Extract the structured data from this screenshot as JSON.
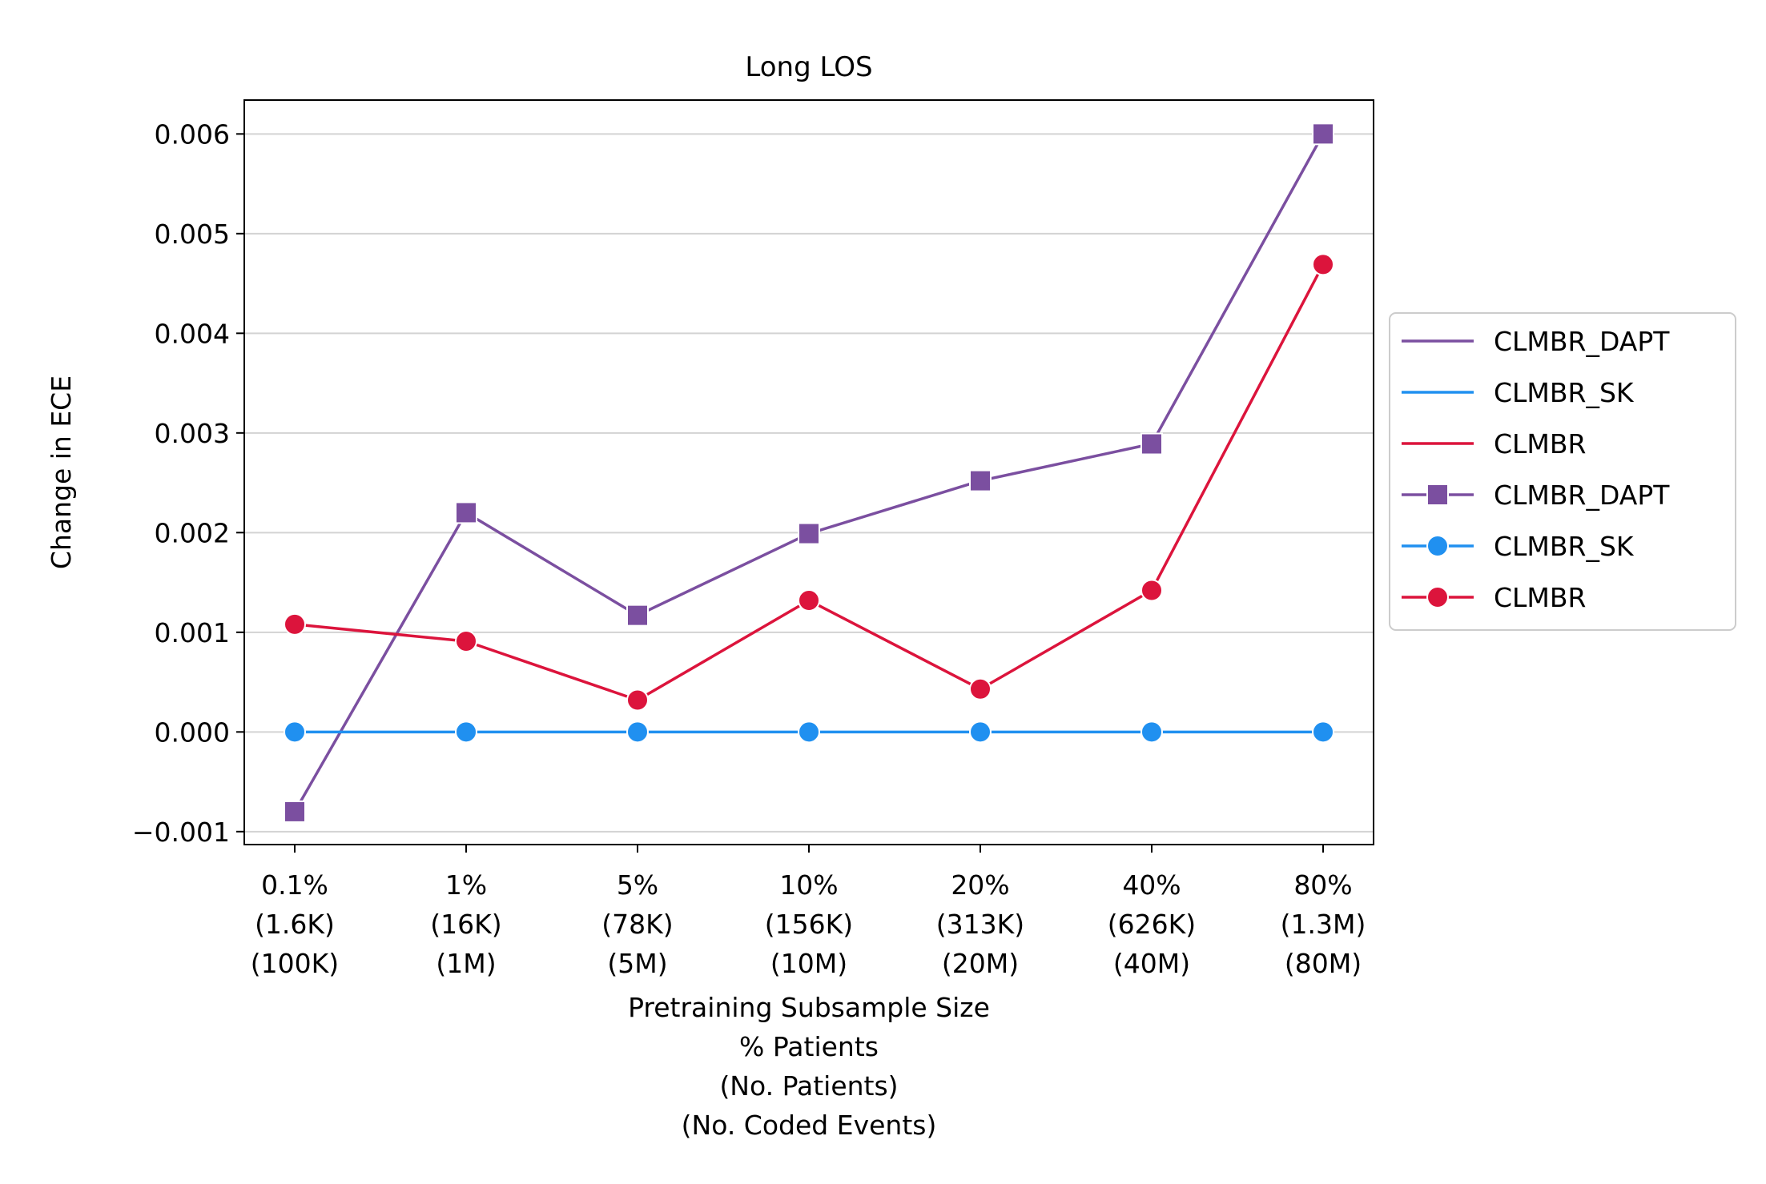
{
  "chart_data": {
    "type": "line",
    "title": "Long LOS",
    "xlabel_lines": [
      "Pretraining Subsample Size",
      "% Patients",
      "(No. Patients)",
      "(No. Coded Events)"
    ],
    "ylabel": "Change in ECE",
    "categories": [
      [
        "0.1%",
        "(1.6K)",
        "(100K)"
      ],
      [
        "1%",
        "(16K)",
        "(1M)"
      ],
      [
        "5%",
        "(78K)",
        "(5M)"
      ],
      [
        "10%",
        "(156K)",
        "(10M)"
      ],
      [
        "20%",
        "(313K)",
        "(20M)"
      ],
      [
        "40%",
        "(626K)",
        "(40M)"
      ],
      [
        "80%",
        "(1.3M)",
        "(80M)"
      ]
    ],
    "ylim": [
      -0.00113,
      0.00634
    ],
    "yticks": [
      -0.001,
      0.0,
      0.001,
      0.002,
      0.003,
      0.004,
      0.005,
      0.006
    ],
    "ytick_labels": [
      "−0.001",
      "0.000",
      "0.001",
      "0.002",
      "0.003",
      "0.004",
      "0.005",
      "0.006"
    ],
    "grid": "horizontal",
    "legend_position": "outside-right",
    "series": [
      {
        "name": "CLMBR_DAPT",
        "color": "#7B4FA0",
        "marker": "square",
        "values": [
          -0.0008,
          0.0022,
          0.00117,
          0.00199,
          0.00252,
          0.00289,
          0.006
        ]
      },
      {
        "name": "CLMBR_SK",
        "color": "#2090F0",
        "marker": "circle",
        "values": [
          0.0,
          0.0,
          0.0,
          0.0,
          0.0,
          0.0,
          0.0
        ]
      },
      {
        "name": "CLMBR",
        "color": "#DC143C",
        "marker": "circle",
        "values": [
          0.00108,
          0.00091,
          0.00032,
          0.00132,
          0.00043,
          0.00142,
          0.00469
        ]
      }
    ],
    "legend": [
      "CLMBR_DAPT",
      "CLMBR_SK",
      "CLMBR",
      "CLMBR_DAPT",
      "CLMBR_SK",
      "CLMBR"
    ]
  }
}
